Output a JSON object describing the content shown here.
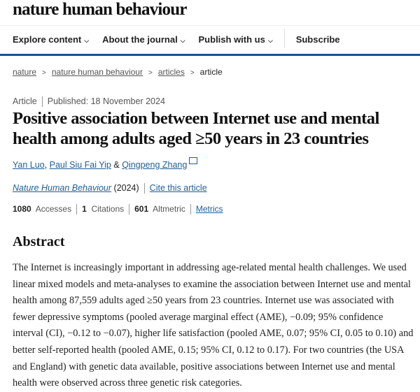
{
  "site": {
    "logo": "nature human behaviour"
  },
  "nav": {
    "items": [
      {
        "label": "Explore content"
      },
      {
        "label": "About the journal"
      },
      {
        "label": "Publish with us"
      }
    ],
    "subscribe": "Subscribe"
  },
  "breadcrumb": {
    "items": [
      "nature",
      "nature human behaviour",
      "articles"
    ],
    "current": "article"
  },
  "article": {
    "type": "Article",
    "published": "Published: 18 November 2024",
    "title": "Positive association between Internet use and mental health among adults aged ≥50 years in 23 countries",
    "authors": [
      "Yan Luo",
      "Paul Siu Fai Yip",
      "Qingpeng Zhang"
    ],
    "author_sep": ",",
    "author_amp": "&",
    "journal": "Nature Human Behaviour",
    "year": "(2024)",
    "cite": "Cite this article",
    "metrics": {
      "accesses": "1080",
      "accesses_label": "Accesses",
      "citations": "1",
      "citations_label": "Citations",
      "altmetric": "601",
      "altmetric_label": "Altmetric",
      "metrics_link": "Metrics"
    }
  },
  "abstract": {
    "heading": "Abstract",
    "text": "The Internet is increasingly important in addressing age-related mental health challenges. We used linear mixed models and meta-analyses to examine the association between Internet use and mental health among 87,559 adults aged ≥50 years from 23 countries. Internet use was associated with fewer depressive symptoms (pooled average marginal effect (AME), −0.09; 95% confidence interval (CI), −0.12 to −0.07), higher life satisfaction (pooled AME, 0.07; 95% CI, 0.05 to 0.10) and better self-reported health (pooled AME, 0.15; 95% CI, 0.12 to 0.17). For two countries (the USA and England) with genetic data available, positive associations between Internet use and mental health were observed across three genetic risk categories."
  }
}
